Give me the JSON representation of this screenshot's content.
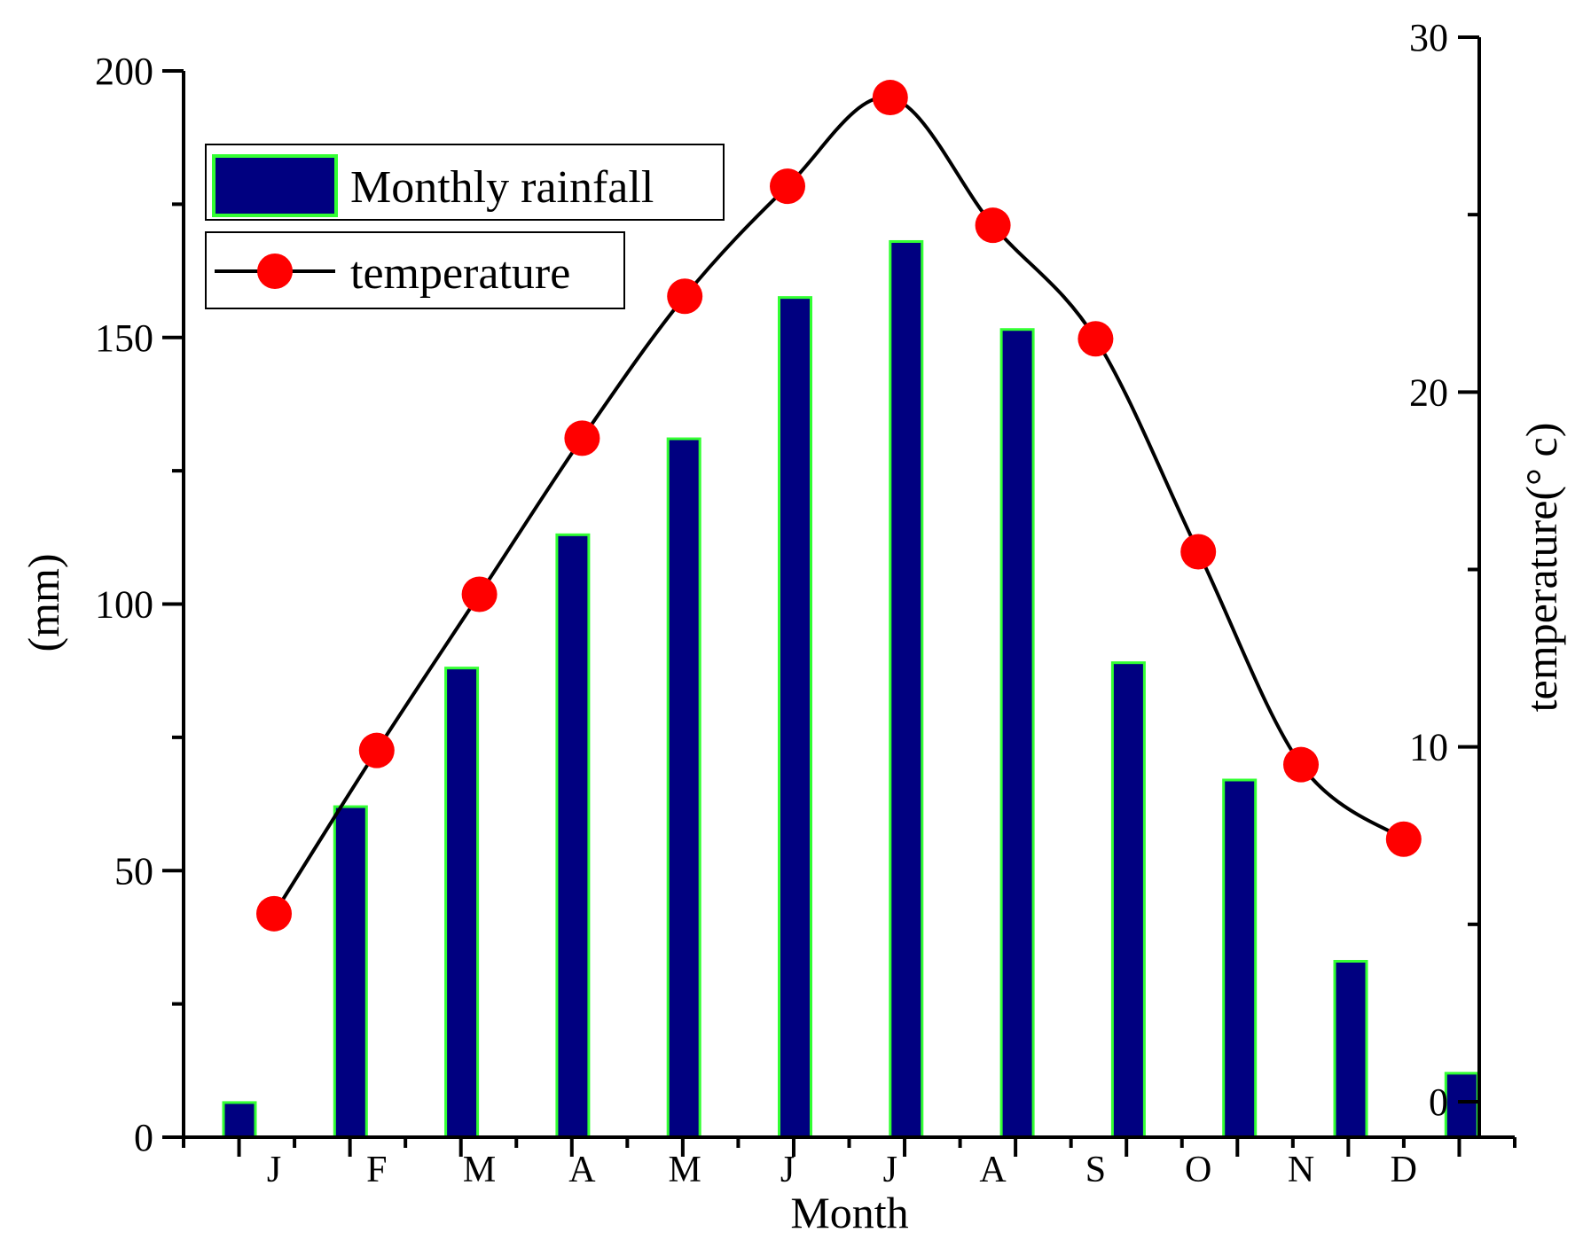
{
  "chart_data": {
    "type": "bar+line",
    "xlabel": "Month",
    "categories": [
      "J",
      "F",
      "M",
      "A",
      "M",
      "J",
      "J",
      "A",
      "S",
      "O",
      "N",
      "D"
    ],
    "y_left": {
      "label": "(mm)",
      "lim": [
        0,
        200
      ],
      "ticks": [
        "0",
        "50",
        "100",
        "150",
        "200"
      ],
      "tick_values": [
        0,
        50,
        100,
        150,
        200
      ]
    },
    "y_right": {
      "label": "temperature(° c)",
      "lim": [
        0,
        30
      ],
      "ticks": [
        "0",
        "10",
        "20",
        "30"
      ],
      "tick_values": [
        0,
        10,
        20,
        30
      ]
    },
    "series": [
      {
        "name": "Monthly rainfall",
        "type": "bar",
        "axis": "left",
        "fill": "#000080",
        "edge": "#33ff33",
        "values": [
          6.5,
          62,
          88,
          113,
          131,
          157.5,
          168,
          151.5,
          89,
          67,
          33,
          12
        ]
      },
      {
        "name": "temperature",
        "type": "line",
        "axis": "right",
        "line_color": "#000000",
        "marker_color": "#ff0000",
        "values": [
          5.3,
          9.9,
          14.3,
          18.7,
          22.7,
          25.8,
          28.3,
          24.7,
          21.5,
          15.5,
          9.5,
          7.4
        ]
      }
    ],
    "legend": {
      "position": "top-left",
      "entries": [
        "Monthly rainfall",
        "temperature"
      ]
    }
  }
}
